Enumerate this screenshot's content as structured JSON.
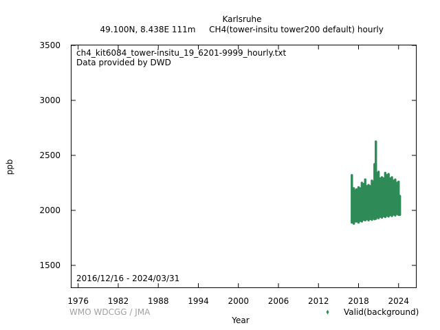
{
  "chart_data": {
    "type": "scatter",
    "title": "Karlsruhe",
    "subtitle_coords": "49.100N, 8.438E 111m",
    "subtitle_param": "CH4(tower-insitu tower200 default) hourly",
    "file_label": "ch4_kit6084_tower-insitu_19_6201-9999_hourly.txt",
    "provider_label": "Data provided by DWD",
    "date_range_label": "2016/12/16 - 2024/03/31",
    "credit": "WMO WDCGG / JMA",
    "xlabel": "Year",
    "ylabel": "ppb",
    "xlim": [
      1975.0,
      2026.6
    ],
    "ylim": [
      1300,
      3500
    ],
    "x_ticks": [
      "1976",
      "1982",
      "1988",
      "1994",
      "2000",
      "2006",
      "2012",
      "2018",
      "2024"
    ],
    "y_ticks": [
      "1500",
      "2000",
      "2500",
      "3000",
      "3500"
    ],
    "legend_position": "bottom-right",
    "grid": false,
    "series": [
      {
        "name": "Valid(background)",
        "color": "#2e8b57",
        "x": [
          2017.0,
          2017.3,
          2017.7,
          2018.0,
          2018.5,
          2019.0,
          2019.5,
          2020.0,
          2020.4,
          2020.6,
          2021.0,
          2021.5,
          2022.0,
          2022.5,
          2023.0,
          2023.5,
          2024.0,
          2024.2
        ],
        "low": [
          1890,
          1880,
          1900,
          1890,
          1900,
          1910,
          1910,
          1915,
          1920,
          1925,
          1930,
          1935,
          1940,
          1945,
          1950,
          1955,
          1960,
          1960
        ],
        "high": [
          2320,
          2200,
          2190,
          2210,
          2250,
          2280,
          2230,
          2270,
          2420,
          2625,
          2350,
          2300,
          2340,
          2330,
          2300,
          2280,
          2260,
          2130
        ]
      }
    ]
  }
}
